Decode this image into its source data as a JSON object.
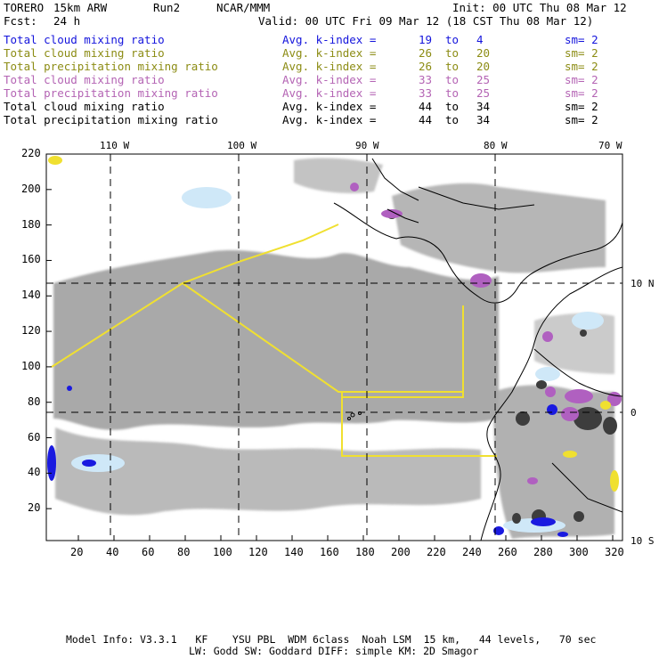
{
  "header": {
    "model": "TORERO",
    "resolution": "15km ARW",
    "run": "Run2",
    "org": "NCAR/MMM",
    "init": "Init: 00 UTC Thu 08 Mar 12",
    "fcst_label": "Fcst:",
    "fcst_value": "24 h",
    "valid": "Valid: 00 UTC Fri 09 Mar 12 (18 CST Thu 08 Mar 12)"
  },
  "legend": [
    {
      "field": "Total cloud mixing ratio",
      "index": "Avg. k-index =",
      "from": "19",
      "to_word": "to",
      "to": "4",
      "sm": "sm= 2",
      "color": "#1414dc"
    },
    {
      "field": "Total cloud mixing ratio",
      "index": "Avg. k-index =",
      "from": "26",
      "to_word": "to",
      "to": "20",
      "sm": "sm= 2",
      "color": "#8c8c14"
    },
    {
      "field": "Total precipitation mixing ratio",
      "index": "Avg. k-index =",
      "from": "26",
      "to_word": "to",
      "to": "20",
      "sm": "sm= 2",
      "color": "#8c8c14"
    },
    {
      "field": "Total cloud mixing ratio",
      "index": "Avg. k-index =",
      "from": "33",
      "to_word": "to",
      "to": "25",
      "sm": "sm= 2",
      "color": "#b464b4"
    },
    {
      "field": "Total precipitation mixing ratio",
      "index": "Avg. k-index =",
      "from": "33",
      "to_word": "to",
      "to": "25",
      "sm": "sm= 2",
      "color": "#b464b4"
    },
    {
      "field": "Total cloud mixing ratio",
      "index": "Avg. k-index =",
      "from": "44",
      "to_word": "to",
      "to": "34",
      "sm": "sm= 2",
      "color": "#000000"
    },
    {
      "field": "Total precipitation mixing ratio",
      "index": "Avg. k-index =",
      "from": "44",
      "to_word": "to",
      "to": "34",
      "sm": "sm= 2",
      "color": "#000000"
    }
  ],
  "map": {
    "lon_labels": [
      "110 W",
      "100 W",
      "90 W",
      "80 W",
      "70 W"
    ],
    "lat_labels": [
      "10 N",
      "0",
      "10 S"
    ],
    "x_ticks": [
      "20",
      "40",
      "60",
      "80",
      "100",
      "120",
      "140",
      "160",
      "180",
      "200",
      "220",
      "240",
      "260",
      "280",
      "300",
      "320"
    ],
    "y_ticks": [
      "20",
      "40",
      "60",
      "80",
      "100",
      "120",
      "140",
      "160",
      "180",
      "200",
      "220"
    ],
    "colors": {
      "cloud_gray": "#a9a9a9",
      "cloud_dark": "#4a4a4a",
      "blue": "#1a1ae0",
      "light_blue": "#cfe8f8",
      "purple": "#b060c0",
      "yellow": "#f0e030",
      "grid": "#000000"
    }
  },
  "footer": {
    "line1": "Model Info: V3.3.1   KF    YSU PBL  WDM 6class  Noah LSM  15 km,   44 levels,   70 sec",
    "line2": "LW: Godd SW: Goddard DIFF: simple KM: 2D Smagor"
  }
}
